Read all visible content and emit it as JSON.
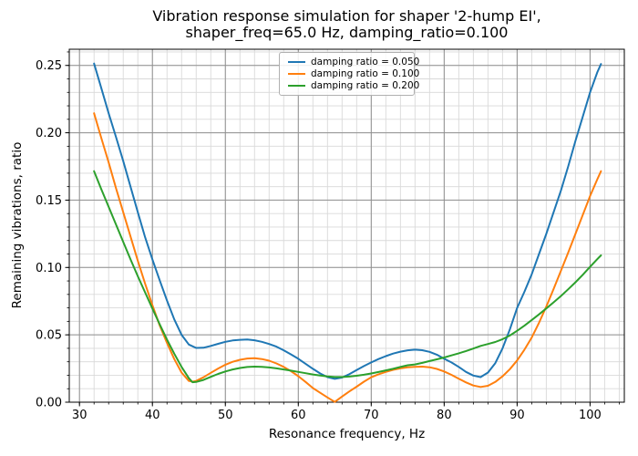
{
  "chart_data": {
    "type": "line",
    "title": "Vibration response simulation for shaper '2-hump EI', shaper_freq=65.0 Hz, damping_ratio=0.100",
    "title_line1": "Vibration response simulation for shaper '2-hump EI',",
    "title_line2": "shaper_freq=65.0 Hz, damping_ratio=0.100",
    "xlabel": "Resonance frequency, Hz",
    "ylabel": "Remaining vibrations, ratio",
    "xlim": [
      28.6,
      104.7
    ],
    "ylim": [
      0,
      0.262
    ],
    "x_major_ticks": [
      30,
      40,
      50,
      60,
      70,
      80,
      90,
      100
    ],
    "x_tick_labels": [
      "30",
      "40",
      "50",
      "60",
      "70",
      "80",
      "90",
      "100"
    ],
    "x_minor_step": 2,
    "y_major_ticks": [
      0,
      0.05,
      0.1,
      0.15,
      0.2,
      0.25
    ],
    "y_tick_labels": [
      "0.00",
      "0.05",
      "0.10",
      "0.15",
      "0.20",
      "0.25"
    ],
    "y_minor_step": 0.01,
    "grid": "both",
    "legend_position": "upper center",
    "colors": {
      "grid_major": "#8f8f8f",
      "grid_minor": "#d9d9d9",
      "spine": "#000000",
      "tick_label": "#000000"
    },
    "series": [
      {
        "name": "damping ratio = 0.050",
        "color": "#1f77b4",
        "points": [
          [
            32,
            0.2514
          ],
          [
            33,
            0.233
          ],
          [
            34,
            0.2145
          ],
          [
            35,
            0.197
          ],
          [
            36,
            0.179
          ],
          [
            37,
            0.16
          ],
          [
            38,
            0.141
          ],
          [
            39,
            0.1225
          ],
          [
            40,
            0.106
          ],
          [
            41,
            0.0905
          ],
          [
            42,
            0.0755
          ],
          [
            43,
            0.0615
          ],
          [
            44,
            0.05
          ],
          [
            45,
            0.0428
          ],
          [
            46,
            0.0403
          ],
          [
            47,
            0.0404
          ],
          [
            48,
            0.0418
          ],
          [
            49,
            0.0433
          ],
          [
            50,
            0.0448
          ],
          [
            51,
            0.0458
          ],
          [
            52,
            0.0463
          ],
          [
            53,
            0.0466
          ],
          [
            54,
            0.046
          ],
          [
            55,
            0.0448
          ],
          [
            56,
            0.0432
          ],
          [
            57,
            0.0412
          ],
          [
            58,
            0.0385
          ],
          [
            59,
            0.0355
          ],
          [
            60,
            0.0322
          ],
          [
            61,
            0.0285
          ],
          [
            62,
            0.0248
          ],
          [
            63,
            0.0213
          ],
          [
            64,
            0.0186
          ],
          [
            65,
            0.0173
          ],
          [
            66,
            0.0183
          ],
          [
            67,
            0.0208
          ],
          [
            68,
            0.0238
          ],
          [
            69,
            0.0268
          ],
          [
            70,
            0.0295
          ],
          [
            71,
            0.032
          ],
          [
            72,
            0.0342
          ],
          [
            73,
            0.0361
          ],
          [
            74,
            0.0375
          ],
          [
            75,
            0.0385
          ],
          [
            76,
            0.039
          ],
          [
            77,
            0.0386
          ],
          [
            78,
            0.0374
          ],
          [
            79,
            0.0353
          ],
          [
            80,
            0.0322
          ],
          [
            81,
            0.0295
          ],
          [
            82,
            0.0262
          ],
          [
            83,
            0.0225
          ],
          [
            84,
            0.0198
          ],
          [
            85,
            0.0186
          ],
          [
            86,
            0.022
          ],
          [
            87,
            0.029
          ],
          [
            88,
            0.04
          ],
          [
            89,
            0.054
          ],
          [
            90,
            0.07
          ],
          [
            91,
            0.082
          ],
          [
            92,
            0.095
          ],
          [
            93,
            0.11
          ],
          [
            94,
            0.125
          ],
          [
            95,
            0.141
          ],
          [
            96,
            0.157
          ],
          [
            97,
            0.175
          ],
          [
            98,
            0.194
          ],
          [
            99,
            0.212
          ],
          [
            100,
            0.23
          ],
          [
            101,
            0.245
          ],
          [
            101.5,
            0.251
          ]
        ]
      },
      {
        "name": "damping ratio = 0.100",
        "color": "#ff7f0e",
        "points": [
          [
            32,
            0.2145
          ],
          [
            33,
            0.196
          ],
          [
            34,
            0.178
          ],
          [
            35,
            0.159
          ],
          [
            36,
            0.141
          ],
          [
            37,
            0.123
          ],
          [
            38,
            0.105
          ],
          [
            39,
            0.088
          ],
          [
            40,
            0.072
          ],
          [
            41,
            0.057
          ],
          [
            42,
            0.044
          ],
          [
            43,
            0.032
          ],
          [
            44,
            0.022
          ],
          [
            45,
            0.0158
          ],
          [
            45.5,
            0.0152
          ],
          [
            46,
            0.0158
          ],
          [
            47,
            0.0185
          ],
          [
            48,
            0.0218
          ],
          [
            49,
            0.025
          ],
          [
            50,
            0.0278
          ],
          [
            51,
            0.03
          ],
          [
            52,
            0.0315
          ],
          [
            53,
            0.0324
          ],
          [
            54,
            0.0326
          ],
          [
            55,
            0.032
          ],
          [
            56,
            0.0308
          ],
          [
            57,
            0.0288
          ],
          [
            58,
            0.0262
          ],
          [
            59,
            0.023
          ],
          [
            60,
            0.0193
          ],
          [
            61,
            0.015
          ],
          [
            62,
            0.0105
          ],
          [
            63,
            0.007
          ],
          [
            64,
            0.0035
          ],
          [
            65,
            0.0002
          ],
          [
            66,
            0.0042
          ],
          [
            67,
            0.008
          ],
          [
            68,
            0.0115
          ],
          [
            69,
            0.0152
          ],
          [
            70,
            0.0185
          ],
          [
            71,
            0.0207
          ],
          [
            72,
            0.0225
          ],
          [
            73,
            0.024
          ],
          [
            74,
            0.0251
          ],
          [
            75,
            0.0259
          ],
          [
            76,
            0.0263
          ],
          [
            77,
            0.0264
          ],
          [
            78,
            0.0259
          ],
          [
            79,
            0.0247
          ],
          [
            80,
            0.0228
          ],
          [
            81,
            0.0203
          ],
          [
            82,
            0.0175
          ],
          [
            83,
            0.0147
          ],
          [
            84,
            0.0124
          ],
          [
            85,
            0.0113
          ],
          [
            86,
            0.0122
          ],
          [
            87,
            0.015
          ],
          [
            88,
            0.0192
          ],
          [
            89,
            0.0245
          ],
          [
            90,
            0.031
          ],
          [
            91,
            0.039
          ],
          [
            92,
            0.048
          ],
          [
            93,
            0.059
          ],
          [
            94,
            0.071
          ],
          [
            95,
            0.084
          ],
          [
            96,
            0.0975
          ],
          [
            97,
            0.111
          ],
          [
            98,
            0.125
          ],
          [
            99,
            0.139
          ],
          [
            100,
            0.153
          ],
          [
            101,
            0.1655
          ],
          [
            101.5,
            0.1715
          ]
        ]
      },
      {
        "name": "damping ratio = 0.200",
        "color": "#2ca02c",
        "points": [
          [
            32,
            0.1715
          ],
          [
            33,
            0.158
          ],
          [
            34,
            0.145
          ],
          [
            35,
            0.132
          ],
          [
            36,
            0.119
          ],
          [
            37,
            0.106
          ],
          [
            38,
            0.0935
          ],
          [
            39,
            0.0815
          ],
          [
            40,
            0.0695
          ],
          [
            41,
            0.0578
          ],
          [
            42,
            0.0465
          ],
          [
            43,
            0.036
          ],
          [
            44,
            0.0262
          ],
          [
            45,
            0.0178
          ],
          [
            45.5,
            0.0148
          ],
          [
            46,
            0.015
          ],
          [
            47,
            0.0165
          ],
          [
            48,
            0.0188
          ],
          [
            49,
            0.021
          ],
          [
            50,
            0.0228
          ],
          [
            51,
            0.0243
          ],
          [
            52,
            0.0254
          ],
          [
            53,
            0.0261
          ],
          [
            54,
            0.0264
          ],
          [
            55,
            0.0263
          ],
          [
            56,
            0.0258
          ],
          [
            57,
            0.0251
          ],
          [
            58,
            0.0243
          ],
          [
            59,
            0.0234
          ],
          [
            60,
            0.0225
          ],
          [
            61,
            0.0215
          ],
          [
            62,
            0.0206
          ],
          [
            63,
            0.0198
          ],
          [
            64,
            0.0191
          ],
          [
            65,
            0.0187
          ],
          [
            66,
            0.0187
          ],
          [
            67,
            0.019
          ],
          [
            68,
            0.0196
          ],
          [
            69,
            0.0204
          ],
          [
            70,
            0.0213
          ],
          [
            71,
            0.0224
          ],
          [
            72,
            0.0236
          ],
          [
            73,
            0.0248
          ],
          [
            74,
            0.0261
          ],
          [
            75,
            0.0274
          ],
          [
            76,
            0.028
          ],
          [
            77,
            0.0292
          ],
          [
            78,
            0.0305
          ],
          [
            79,
            0.0318
          ],
          [
            80,
            0.0332
          ],
          [
            81,
            0.0347
          ],
          [
            82,
            0.0363
          ],
          [
            83,
            0.038
          ],
          [
            84,
            0.0398
          ],
          [
            85,
            0.0418
          ],
          [
            86,
            0.0432
          ],
          [
            87,
            0.0447
          ],
          [
            88,
            0.0468
          ],
          [
            89,
            0.0495
          ],
          [
            90,
            0.053
          ],
          [
            91,
            0.0568
          ],
          [
            92,
            0.061
          ],
          [
            93,
            0.0652
          ],
          [
            94,
            0.0696
          ],
          [
            95,
            0.0741
          ],
          [
            96,
            0.0788
          ],
          [
            97,
            0.0838
          ],
          [
            98,
            0.089
          ],
          [
            99,
            0.0946
          ],
          [
            100,
            0.1005
          ],
          [
            101,
            0.1062
          ],
          [
            101.5,
            0.109
          ]
        ]
      }
    ]
  }
}
